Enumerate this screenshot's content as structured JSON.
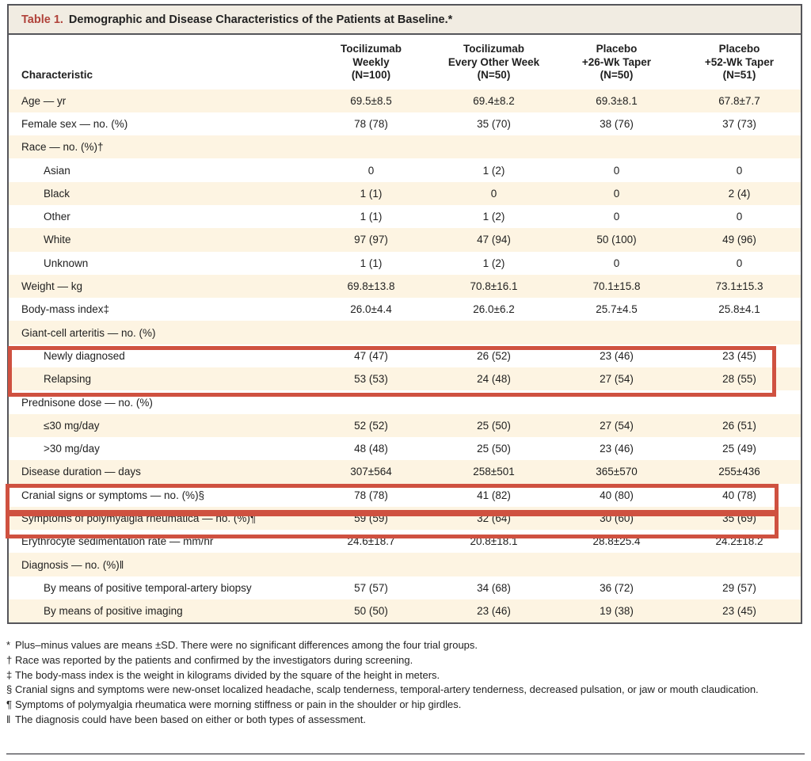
{
  "title": {
    "label": "Table 1.",
    "text": "Demographic and Disease Characteristics of the Patients at Baseline.*"
  },
  "header": {
    "characteristic_label": "Characteristic",
    "groups": [
      {
        "line1": "Tocilizumab",
        "line2": "Weekly",
        "n": "(N=100)"
      },
      {
        "line1": "Tocilizumab",
        "line2": "Every Other Week",
        "n": "(N=50)"
      },
      {
        "line1": "Placebo",
        "line2": "+26-Wk Taper",
        "n": "(N=50)"
      },
      {
        "line1": "Placebo",
        "line2": "+52-Wk Taper",
        "n": "(N=51)"
      }
    ]
  },
  "rows": [
    {
      "label": "Age — yr",
      "indent": false,
      "shaded": true,
      "values": [
        "69.5±8.5",
        "69.4±8.2",
        "69.3±8.1",
        "67.8±7.7"
      ]
    },
    {
      "label": "Female sex — no. (%)",
      "indent": false,
      "shaded": false,
      "values": [
        "78 (78)",
        "35 (70)",
        "38 (76)",
        "37 (73)"
      ]
    },
    {
      "label": "Race — no. (%)†",
      "indent": false,
      "shaded": true,
      "values": [
        "",
        "",
        "",
        ""
      ]
    },
    {
      "label": "Asian",
      "indent": true,
      "shaded": false,
      "values": [
        "0",
        "1 (2)",
        "0",
        "0"
      ]
    },
    {
      "label": "Black",
      "indent": true,
      "shaded": true,
      "values": [
        "1 (1)",
        "0",
        "0",
        "2 (4)"
      ]
    },
    {
      "label": "Other",
      "indent": true,
      "shaded": false,
      "values": [
        "1 (1)",
        "1 (2)",
        "0",
        "0"
      ]
    },
    {
      "label": "White",
      "indent": true,
      "shaded": true,
      "values": [
        "97 (97)",
        "47 (94)",
        "50 (100)",
        "49 (96)"
      ]
    },
    {
      "label": "Unknown",
      "indent": true,
      "shaded": false,
      "values": [
        "1 (1)",
        "1 (2)",
        "0",
        "0"
      ]
    },
    {
      "label": "Weight — kg",
      "indent": false,
      "shaded": true,
      "values": [
        "69.8±13.8",
        "70.8±16.1",
        "70.1±15.8",
        "73.1±15.3"
      ]
    },
    {
      "label": "Body-mass index‡",
      "indent": false,
      "shaded": false,
      "values": [
        "26.0±4.4",
        "26.0±6.2",
        "25.7±4.5",
        "25.8±4.1"
      ]
    },
    {
      "label": "Giant-cell arteritis — no. (%)",
      "indent": false,
      "shaded": true,
      "values": [
        "",
        "",
        "",
        ""
      ]
    },
    {
      "label": "Newly diagnosed",
      "indent": true,
      "shaded": false,
      "values": [
        "47 (47)",
        "26 (52)",
        "23 (46)",
        "23 (45)"
      ]
    },
    {
      "label": "Relapsing",
      "indent": true,
      "shaded": true,
      "values": [
        "53 (53)",
        "24 (48)",
        "27 (54)",
        "28 (55)"
      ]
    },
    {
      "label": "Prednisone dose — no. (%)",
      "indent": false,
      "shaded": false,
      "values": [
        "",
        "",
        "",
        ""
      ]
    },
    {
      "label": "≤30 mg/day",
      "indent": true,
      "shaded": true,
      "values": [
        "52 (52)",
        "25 (50)",
        "27 (54)",
        "26 (51)"
      ]
    },
    {
      "label": ">30 mg/day",
      "indent": true,
      "shaded": false,
      "values": [
        "48 (48)",
        "25 (50)",
        "23 (46)",
        "25 (49)"
      ]
    },
    {
      "label": "Disease duration — days",
      "indent": false,
      "shaded": true,
      "values": [
        "307±564",
        "258±501",
        "365±570",
        "255±436"
      ]
    },
    {
      "label": "Cranial signs or symptoms — no. (%)§",
      "indent": false,
      "shaded": false,
      "values": [
        "78 (78)",
        "41 (82)",
        "40 (80)",
        "40 (78)"
      ]
    },
    {
      "label": "Symptoms of polymyalgia rheumatica — no. (%)¶",
      "indent": false,
      "shaded": true,
      "values": [
        "59 (59)",
        "32 (64)",
        "30 (60)",
        "35 (69)"
      ]
    },
    {
      "label": "Erythrocyte sedimentation rate — mm/hr",
      "indent": false,
      "shaded": false,
      "values": [
        "24.6±18.7",
        "20.8±18.1",
        "28.8±25.4",
        "24.2±18.2"
      ]
    },
    {
      "label": "Diagnosis — no. (%)‖",
      "indent": false,
      "shaded": true,
      "values": [
        "",
        "",
        "",
        ""
      ]
    },
    {
      "label": "By means of positive temporal-artery biopsy",
      "indent": true,
      "shaded": false,
      "values": [
        "57 (57)",
        "34 (68)",
        "36 (72)",
        "29 (57)"
      ]
    },
    {
      "label": "By means of positive imaging",
      "indent": true,
      "shaded": true,
      "values": [
        "50 (50)",
        "23 (46)",
        "19 (38)",
        "23 (45)"
      ]
    }
  ],
  "highlights": [
    {
      "name": "giant-cell-arteritis-subrows-highlight"
    },
    {
      "name": "cranial-signs-row-highlight"
    },
    {
      "name": "polymyalgia-symptoms-row-highlight"
    }
  ],
  "footnotes": [
    {
      "symbol": "*",
      "text": "Plus–minus values are means ±SD. There were no significant differences among the four trial groups."
    },
    {
      "symbol": "†",
      "text": "Race was reported by the patients and confirmed by the investigators during screening."
    },
    {
      "symbol": "‡",
      "text": "The body-mass index is the weight in kilograms divided by the square of the height in meters."
    },
    {
      "symbol": "§",
      "text": "Cranial signs and symptoms were new-onset localized headache, scalp tenderness, temporal-artery tenderness, decreased pulsation, or jaw or mouth claudication."
    },
    {
      "symbol": "¶",
      "text": "Symptoms of polymyalgia rheumatica were morning stiffness or pain in the shoulder or hip girdles."
    },
    {
      "symbol": "‖",
      "text": "The diagnosis could have been based on either or both types of assessment."
    }
  ],
  "colors": {
    "accent_red": "#b0423a",
    "highlight_red": "#cf5140",
    "row_cream": "#fdf4e2",
    "titlebar_bg": "#f1ece2"
  }
}
